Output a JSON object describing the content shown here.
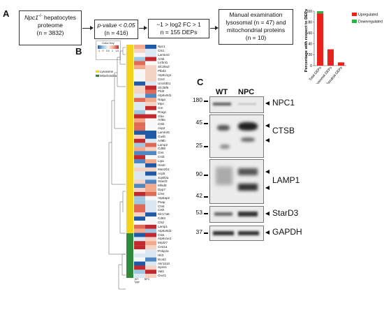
{
  "panel_labels": {
    "a": "A",
    "b": "B",
    "c": "C"
  },
  "flow": {
    "box1": {
      "gene_italic": "Npc1",
      "gene_sup": "-/-",
      "line1_rest": " hepatocytes",
      "line2": "proteome",
      "n_line": "(n = 3832)"
    },
    "box2": {
      "line1": "p-value < 0.05",
      "n_line": "(n = 416)"
    },
    "box3": {
      "line1": "−1 > log2 FC > 1",
      "n_line": "n = 155 DEPs"
    },
    "box4": {
      "line1": "Manual examination",
      "line2": "lysosomal (n = 47) and",
      "line3": "mitochondrial proteins",
      "n_line": "(n = 10)"
    }
  },
  "chart_data": {
    "type": "bar",
    "stacked": true,
    "categories": [
      "Total DEPs",
      "Lysosomal DEPs",
      "Mitochondrial DEPs"
    ],
    "series": [
      {
        "name": "Upregulated",
        "color": "#e8231e",
        "values": [
          96,
          30,
          6
        ]
      },
      {
        "name": "Downregulated",
        "color": "#2bb34a",
        "values": [
          4,
          0,
          0
        ]
      }
    ],
    "ylabel": "Percentage with respect to DEPs",
    "ylim": [
      0,
      100
    ],
    "yticks": [
      "0",
      "20",
      "40",
      "60",
      "80",
      "100"
    ],
    "legend_position": "right"
  },
  "heatmap": {
    "color_key_title": "Color Key",
    "color_key_ticks": [
      "-1",
      "0",
      "0.5",
      "1",
      "1.5"
    ],
    "legend": [
      {
        "label": "Lysosome",
        "color": "#f5d31a"
      },
      {
        "label": "Mitochondria",
        "color": "#2e8b3a"
      }
    ],
    "genes": [
      "Npc1",
      "Cts1",
      "Lamtor2",
      "Arsb",
      "Lrrbnl1",
      "Slc29a3",
      "Plbd2",
      "Atp6v1g1",
      "Ctn3",
      "Unc93b1",
      "Slc35f6",
      "Pld3",
      "Atp6v0d1",
      "Naga",
      "Mpo",
      "Gm",
      "Rragc",
      "Gba",
      "Arl8a",
      "Ctsb",
      "Asp2",
      "Lamtor5",
      "Gusb",
      "Arl8b",
      "Lamp2",
      "Cd68",
      "Gns",
      "Cst3",
      "Lipa",
      "Hexb",
      "Man2b1",
      "Acp5",
      "Sqstl2a",
      "Stard3",
      "Mfsd8",
      "Dpp7",
      "Ctns",
      "Atp6ap2",
      "Psap",
      "Chst",
      "Ctsh",
      "Slc17a5",
      "Cd63",
      "Ctsz",
      "Lamp1",
      "Atp6v0d2",
      "Ctss",
      "Atp6v1e1",
      "Mrpl27",
      "Ces1a",
      "Pnkp2a",
      "Hk3",
      "Bcat2",
      "Akr1b10",
      "Spns1",
      "Vat1",
      "Oxct1"
    ],
    "column_labels": [
      "WT",
      "NPC"
    ],
    "column_sublabel": "Type"
  },
  "blot": {
    "lanes": [
      "WT",
      "NPC"
    ],
    "proteins": [
      "NPC1",
      "CTSB",
      "LAMP1",
      "StarD3",
      "GAPDH"
    ],
    "mw_markers": [
      "180",
      "45",
      "25",
      "90",
      "42",
      "53",
      "37"
    ]
  }
}
